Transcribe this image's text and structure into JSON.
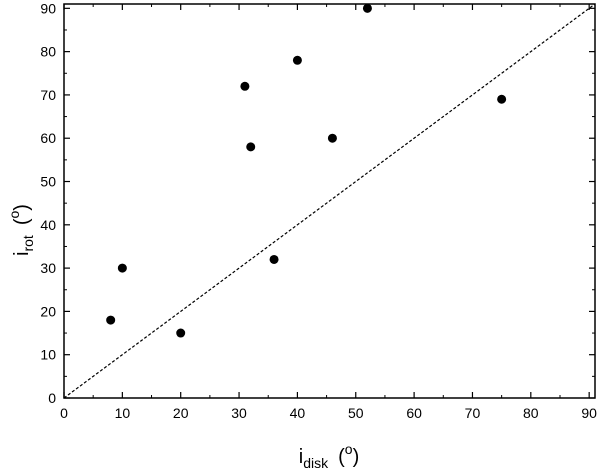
{
  "chart_data": {
    "type": "scatter",
    "xlabel": {
      "main": "i",
      "sub": "disk",
      "unit_open": "(",
      "unit_sup": "o",
      "unit_close": ")"
    },
    "ylabel": {
      "main": "i",
      "sub": "rot",
      "unit_open": "(",
      "unit_sup": "o",
      "unit_close": ")"
    },
    "xlim": [
      0,
      91
    ],
    "ylim": [
      0,
      91
    ],
    "xticks": [
      0,
      10,
      20,
      30,
      40,
      50,
      60,
      70,
      80,
      90
    ],
    "yticks": [
      0,
      10,
      20,
      30,
      40,
      50,
      60,
      70,
      80,
      90
    ],
    "grid": false,
    "points": [
      {
        "x": 8,
        "y": 18
      },
      {
        "x": 10,
        "y": 30
      },
      {
        "x": 20,
        "y": 15
      },
      {
        "x": 31,
        "y": 72
      },
      {
        "x": 32,
        "y": 58
      },
      {
        "x": 36,
        "y": 32
      },
      {
        "x": 40,
        "y": 78
      },
      {
        "x": 46,
        "y": 60
      },
      {
        "x": 52,
        "y": 90
      },
      {
        "x": 75,
        "y": 69
      }
    ],
    "reference_line": {
      "style": "dotted",
      "from": [
        0,
        0
      ],
      "to": [
        91,
        91
      ]
    },
    "colors": {
      "marker": "#000000",
      "axis": "#000000",
      "background": "#ffffff"
    }
  }
}
